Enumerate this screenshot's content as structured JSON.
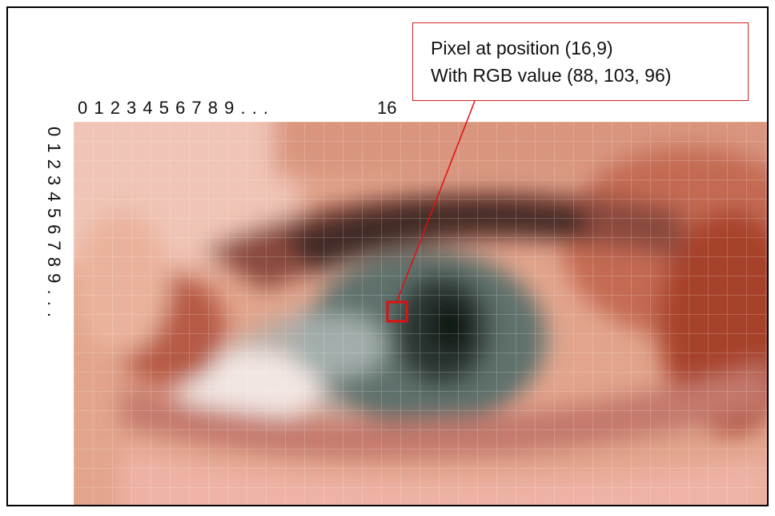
{
  "column_labels": "0 1 2 3 4 5 6 7 8 9 . . .",
  "column_label_16": "16",
  "row_labels": "0 1 2 3 4 5 6 7 8 9 . . .",
  "callout": {
    "line1": "Pixel at position (16,9)",
    "line2": "With RGB value (88, 103, 96)"
  },
  "highlight": {
    "col": 16,
    "row": 9,
    "rgb": [
      88,
      103,
      96
    ]
  },
  "colors": {
    "frame": "#000000",
    "callout_border": "#d42020",
    "highlight": "#e01010",
    "grid_line": "rgba(255,255,255,0.35)"
  }
}
